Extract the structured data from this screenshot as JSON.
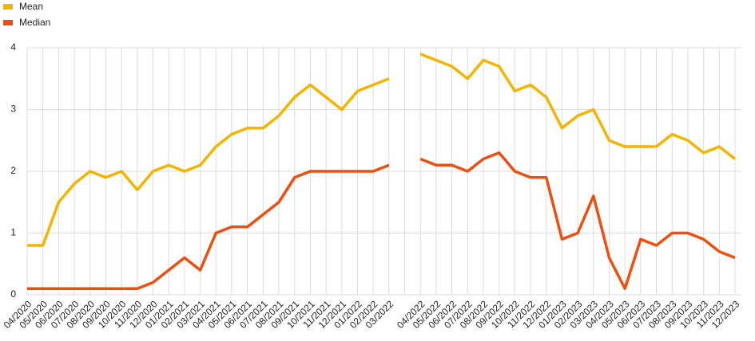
{
  "chart_data": {
    "type": "line",
    "categories": [
      "04/2020",
      "05/2020",
      "06/2020",
      "07/2020",
      "08/2020",
      "09/2020",
      "10/2020",
      "11/2020",
      "12/2020",
      "01/2021",
      "02/2021",
      "03/2021",
      "04/2021",
      "05/2021",
      "06/2021",
      "07/2021",
      "08/2021",
      "09/2021",
      "10/2021",
      "11/2021",
      "12/2021",
      "01/2022",
      "02/2022",
      "03/2022",
      null,
      "04/2022",
      "05/2022",
      "06/2022",
      "07/2022",
      "08/2022",
      "09/2022",
      "10/2022",
      "11/2022",
      "12/2022",
      "01/2023",
      "02/2023",
      "03/2023",
      "04/2023",
      "05/2023",
      "06/2023",
      "07/2023",
      "08/2023",
      "09/2023",
      "10/2023",
      "11/2023",
      "12/2023"
    ],
    "series": [
      {
        "name": "Mean",
        "color": "#f6b400",
        "values": [
          0.8,
          0.8,
          1.5,
          1.8,
          2.0,
          1.9,
          2.0,
          1.7,
          2.0,
          2.1,
          2.0,
          2.1,
          2.4,
          2.6,
          2.7,
          2.7,
          2.9,
          3.2,
          3.4,
          3.2,
          3.0,
          3.3,
          3.4,
          3.5,
          null,
          3.9,
          3.8,
          3.7,
          3.5,
          3.8,
          3.7,
          3.3,
          3.4,
          3.2,
          2.7,
          2.9,
          3.0,
          2.5,
          2.4,
          2.4,
          2.4,
          2.6,
          2.5,
          2.3,
          2.4,
          2.2
        ]
      },
      {
        "name": "Median",
        "color": "#f04e0f",
        "values": [
          0.1,
          0.1,
          0.1,
          0.1,
          0.1,
          0.1,
          0.1,
          0.1,
          0.2,
          0.4,
          0.6,
          0.4,
          1.0,
          1.1,
          1.1,
          1.3,
          1.5,
          1.9,
          2.0,
          2.0,
          2.0,
          2.0,
          2.0,
          2.1,
          null,
          2.2,
          2.1,
          2.1,
          2.0,
          2.2,
          2.3,
          2.0,
          1.9,
          1.9,
          0.9,
          1.0,
          1.6,
          0.6,
          0.1,
          0.9,
          0.8,
          1.0,
          1.0,
          0.9,
          0.7,
          0.6
        ]
      }
    ],
    "ylim": [
      0,
      4
    ],
    "yticks": [
      0,
      1,
      2,
      3,
      4
    ],
    "grid": true
  }
}
